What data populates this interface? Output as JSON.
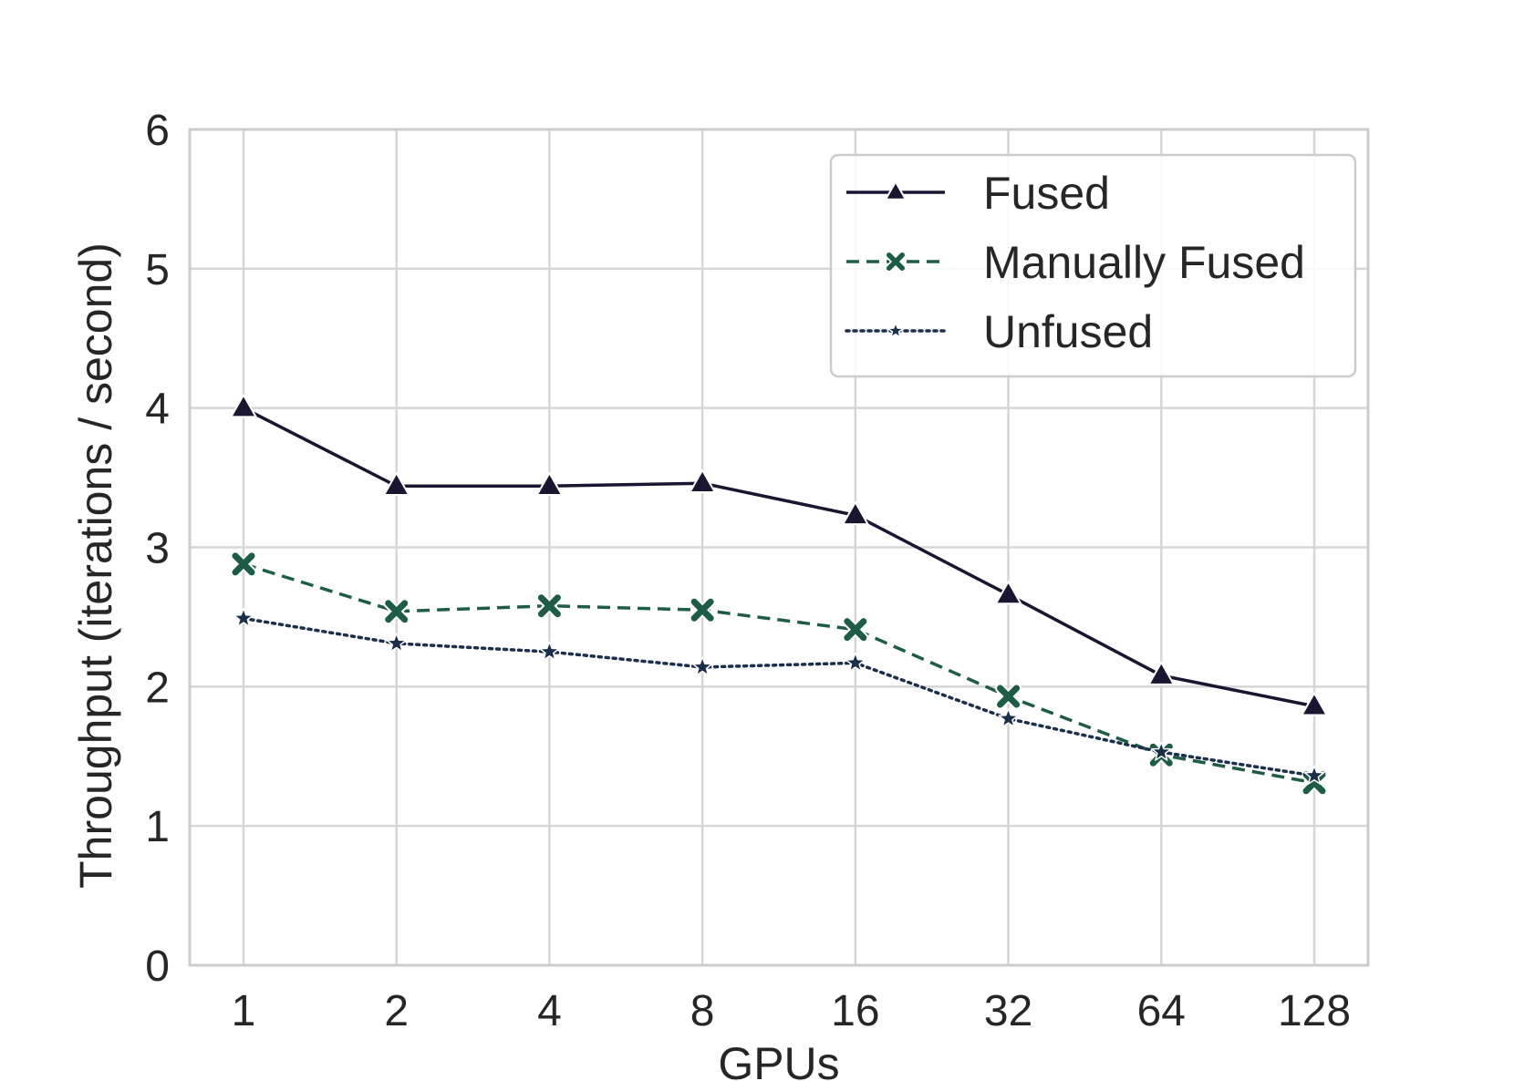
{
  "chart_data": {
    "type": "line",
    "title": "",
    "xlabel": "GPUs",
    "ylabel": "Throughput (iterations / second)",
    "categories": [
      "1",
      "2",
      "4",
      "8",
      "16",
      "32",
      "64",
      "128"
    ],
    "yticks": [
      "0",
      "1",
      "2",
      "3",
      "4",
      "5",
      "6"
    ],
    "ylim": [
      0,
      6
    ],
    "grid": true,
    "legend_position": "top-right",
    "series": [
      {
        "name": "Fused",
        "values": [
          4.0,
          3.44,
          3.44,
          3.46,
          3.23,
          2.66,
          2.08,
          1.86
        ],
        "color": "#1a1530",
        "line_style": "solid",
        "marker": "triangle"
      },
      {
        "name": "Manually Fused",
        "values": [
          2.88,
          2.54,
          2.58,
          2.55,
          2.41,
          1.93,
          1.51,
          1.31
        ],
        "color": "#1e5c48",
        "line_style": "dashed",
        "marker": "x"
      },
      {
        "name": "Unfused",
        "values": [
          2.49,
          2.31,
          2.25,
          2.14,
          2.17,
          1.77,
          1.53,
          1.36
        ],
        "color": "#1b2f4a",
        "line_style": "dotted",
        "marker": "star"
      }
    ]
  }
}
